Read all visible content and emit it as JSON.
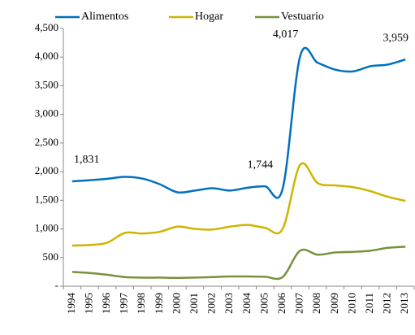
{
  "chart_data": {
    "type": "line",
    "categories": [
      "1994",
      "1995",
      "1996",
      "1997",
      "1998",
      "1999",
      "2000",
      "2001",
      "2002",
      "2003",
      "2004",
      "2005",
      "2006",
      "2007",
      "2008",
      "2009",
      "2010",
      "2011",
      "2012",
      "2013"
    ],
    "series": [
      {
        "name": "Alimentos",
        "color": "#0070c0",
        "values": [
          1831,
          1850,
          1875,
          1910,
          1880,
          1780,
          1640,
          1670,
          1710,
          1670,
          1720,
          1744,
          1700,
          4017,
          3900,
          3780,
          3750,
          3840,
          3870,
          3959
        ],
        "value_labels": [
          "1,831",
          null,
          null,
          null,
          null,
          null,
          null,
          null,
          null,
          null,
          null,
          "1,744",
          null,
          "4,017",
          null,
          null,
          null,
          null,
          null,
          "3,959"
        ]
      },
      {
        "name": "Hogar",
        "color": "#cfb400",
        "values": [
          710,
          720,
          760,
          930,
          920,
          950,
          1040,
          1000,
          990,
          1040,
          1070,
          1020,
          1000,
          2120,
          1800,
          1760,
          1730,
          1660,
          1560,
          1490
        ]
      },
      {
        "name": "Vestuario",
        "color": "#76923c",
        "values": [
          250,
          230,
          200,
          160,
          150,
          150,
          145,
          150,
          160,
          170,
          170,
          165,
          160,
          620,
          550,
          590,
          600,
          620,
          670,
          690
        ]
      }
    ],
    "ylim": [
      0,
      4500
    ],
    "yticks": [
      {
        "value": 0,
        "label": "-"
      },
      500,
      {
        "value": 1000,
        "label": "1,000"
      },
      {
        "value": 1500,
        "label": "1,500"
      },
      {
        "value": 2000,
        "label": "2,000"
      },
      {
        "value": 2500,
        "label": "2,500"
      },
      {
        "value": 3000,
        "label": "3,000"
      },
      {
        "value": 3500,
        "label": "3,500"
      },
      {
        "value": 4000,
        "label": "4,000"
      },
      {
        "value": 4500,
        "label": "4,500"
      }
    ],
    "legend": "top",
    "grid": false
  }
}
